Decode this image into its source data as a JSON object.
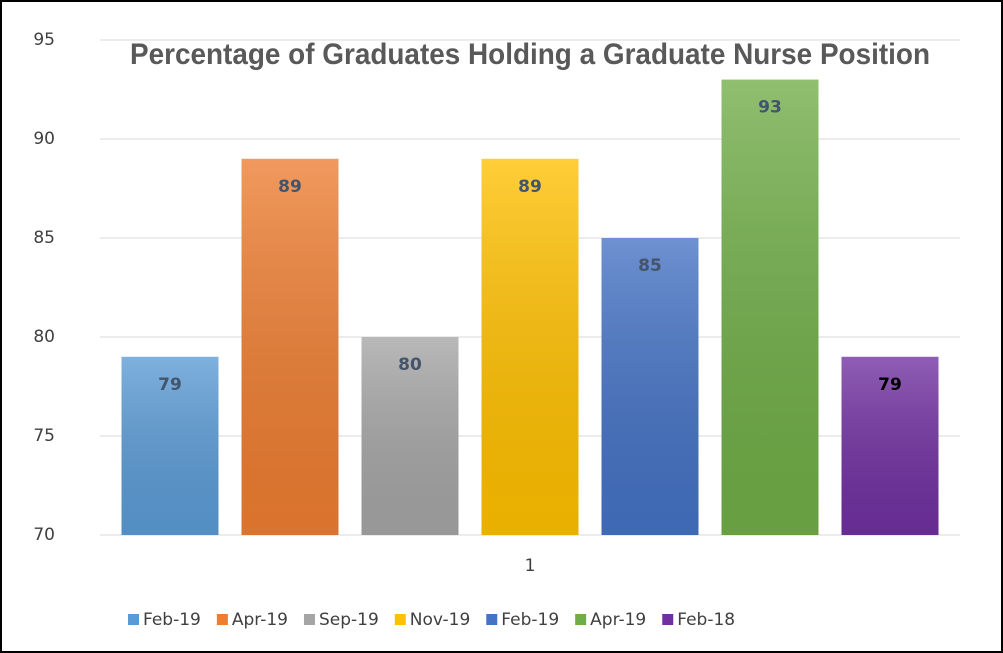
{
  "chart_data": {
    "type": "bar",
    "title": "Percentage of Graduates Holding a Graduate Nurse Position",
    "categories": [
      "1"
    ],
    "series": [
      {
        "name": "Feb-19",
        "color": "#5b9bd5",
        "label_color": "#44546a",
        "values": [
          79
        ]
      },
      {
        "name": "Apr-19",
        "color": "#ed7d31",
        "label_color": "#44546a",
        "values": [
          89
        ]
      },
      {
        "name": "Sep-19",
        "color": "#a5a5a5",
        "label_color": "#44546a",
        "values": [
          80
        ]
      },
      {
        "name": "Nov-19",
        "color": "#ffc000",
        "label_color": "#44546a",
        "values": [
          89
        ]
      },
      {
        "name": "Feb-19",
        "color": "#4472c4",
        "label_color": "#44546a",
        "values": [
          85
        ]
      },
      {
        "name": "Apr-19",
        "color": "#70ad47",
        "label_color": "#44546a",
        "values": [
          93
        ]
      },
      {
        "name": "Feb-18",
        "color": "#7030a0",
        "label_color": "#000000",
        "values": [
          79
        ]
      }
    ],
    "ylim": [
      70,
      95
    ],
    "yticks": [
      70,
      75,
      80,
      85,
      90,
      95
    ],
    "grid": true,
    "legend": "bottom"
  }
}
